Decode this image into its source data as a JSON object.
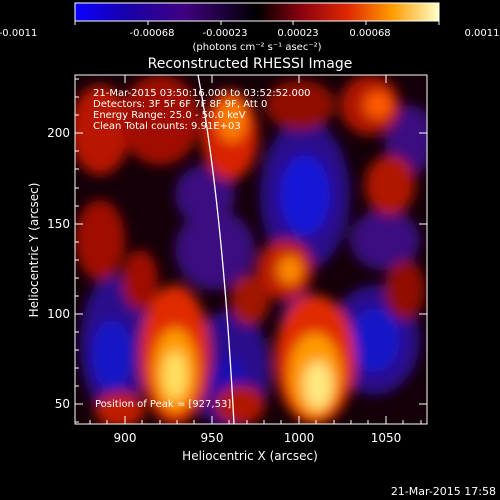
{
  "colorbar": {
    "tick_labels": [
      "-0.0011",
      "-0.00068",
      "-0.00023",
      "0.00023",
      "0.00068",
      "0.0011"
    ],
    "units": "(photons cm⁻² s⁻¹ asec⁻²)",
    "colormap": [
      "#0a00ff",
      "#1a00a0",
      "#4b0077",
      "#000000",
      "#7a0010",
      "#d01a00",
      "#ff6a00",
      "#ffc010",
      "#ffffc0"
    ]
  },
  "image": {
    "title": "Reconstructed RHESSI Image",
    "info_lines": [
      "21-Mar-2015 03:50:16.000 to 03:52:52.000",
      "Detectors: 3F 5F 6F 7F 8F 9F, Att 0",
      "Energy Range: 25.0 - 50.0 keV",
      "Clean     Total counts: 9.91E+03"
    ],
    "position_label": "Position of Peak = [927,53]",
    "x_axis": {
      "label": "Heliocentric X (arcsec)",
      "ticks": [
        "900",
        "950",
        "1000",
        "1050"
      ]
    },
    "y_axis": {
      "label": "Heliocentric Y (arcsec)",
      "ticks": [
        "50",
        "100",
        "150",
        "200"
      ]
    }
  },
  "footer": {
    "timestamp": "21-Mar-2015 17:58"
  }
}
